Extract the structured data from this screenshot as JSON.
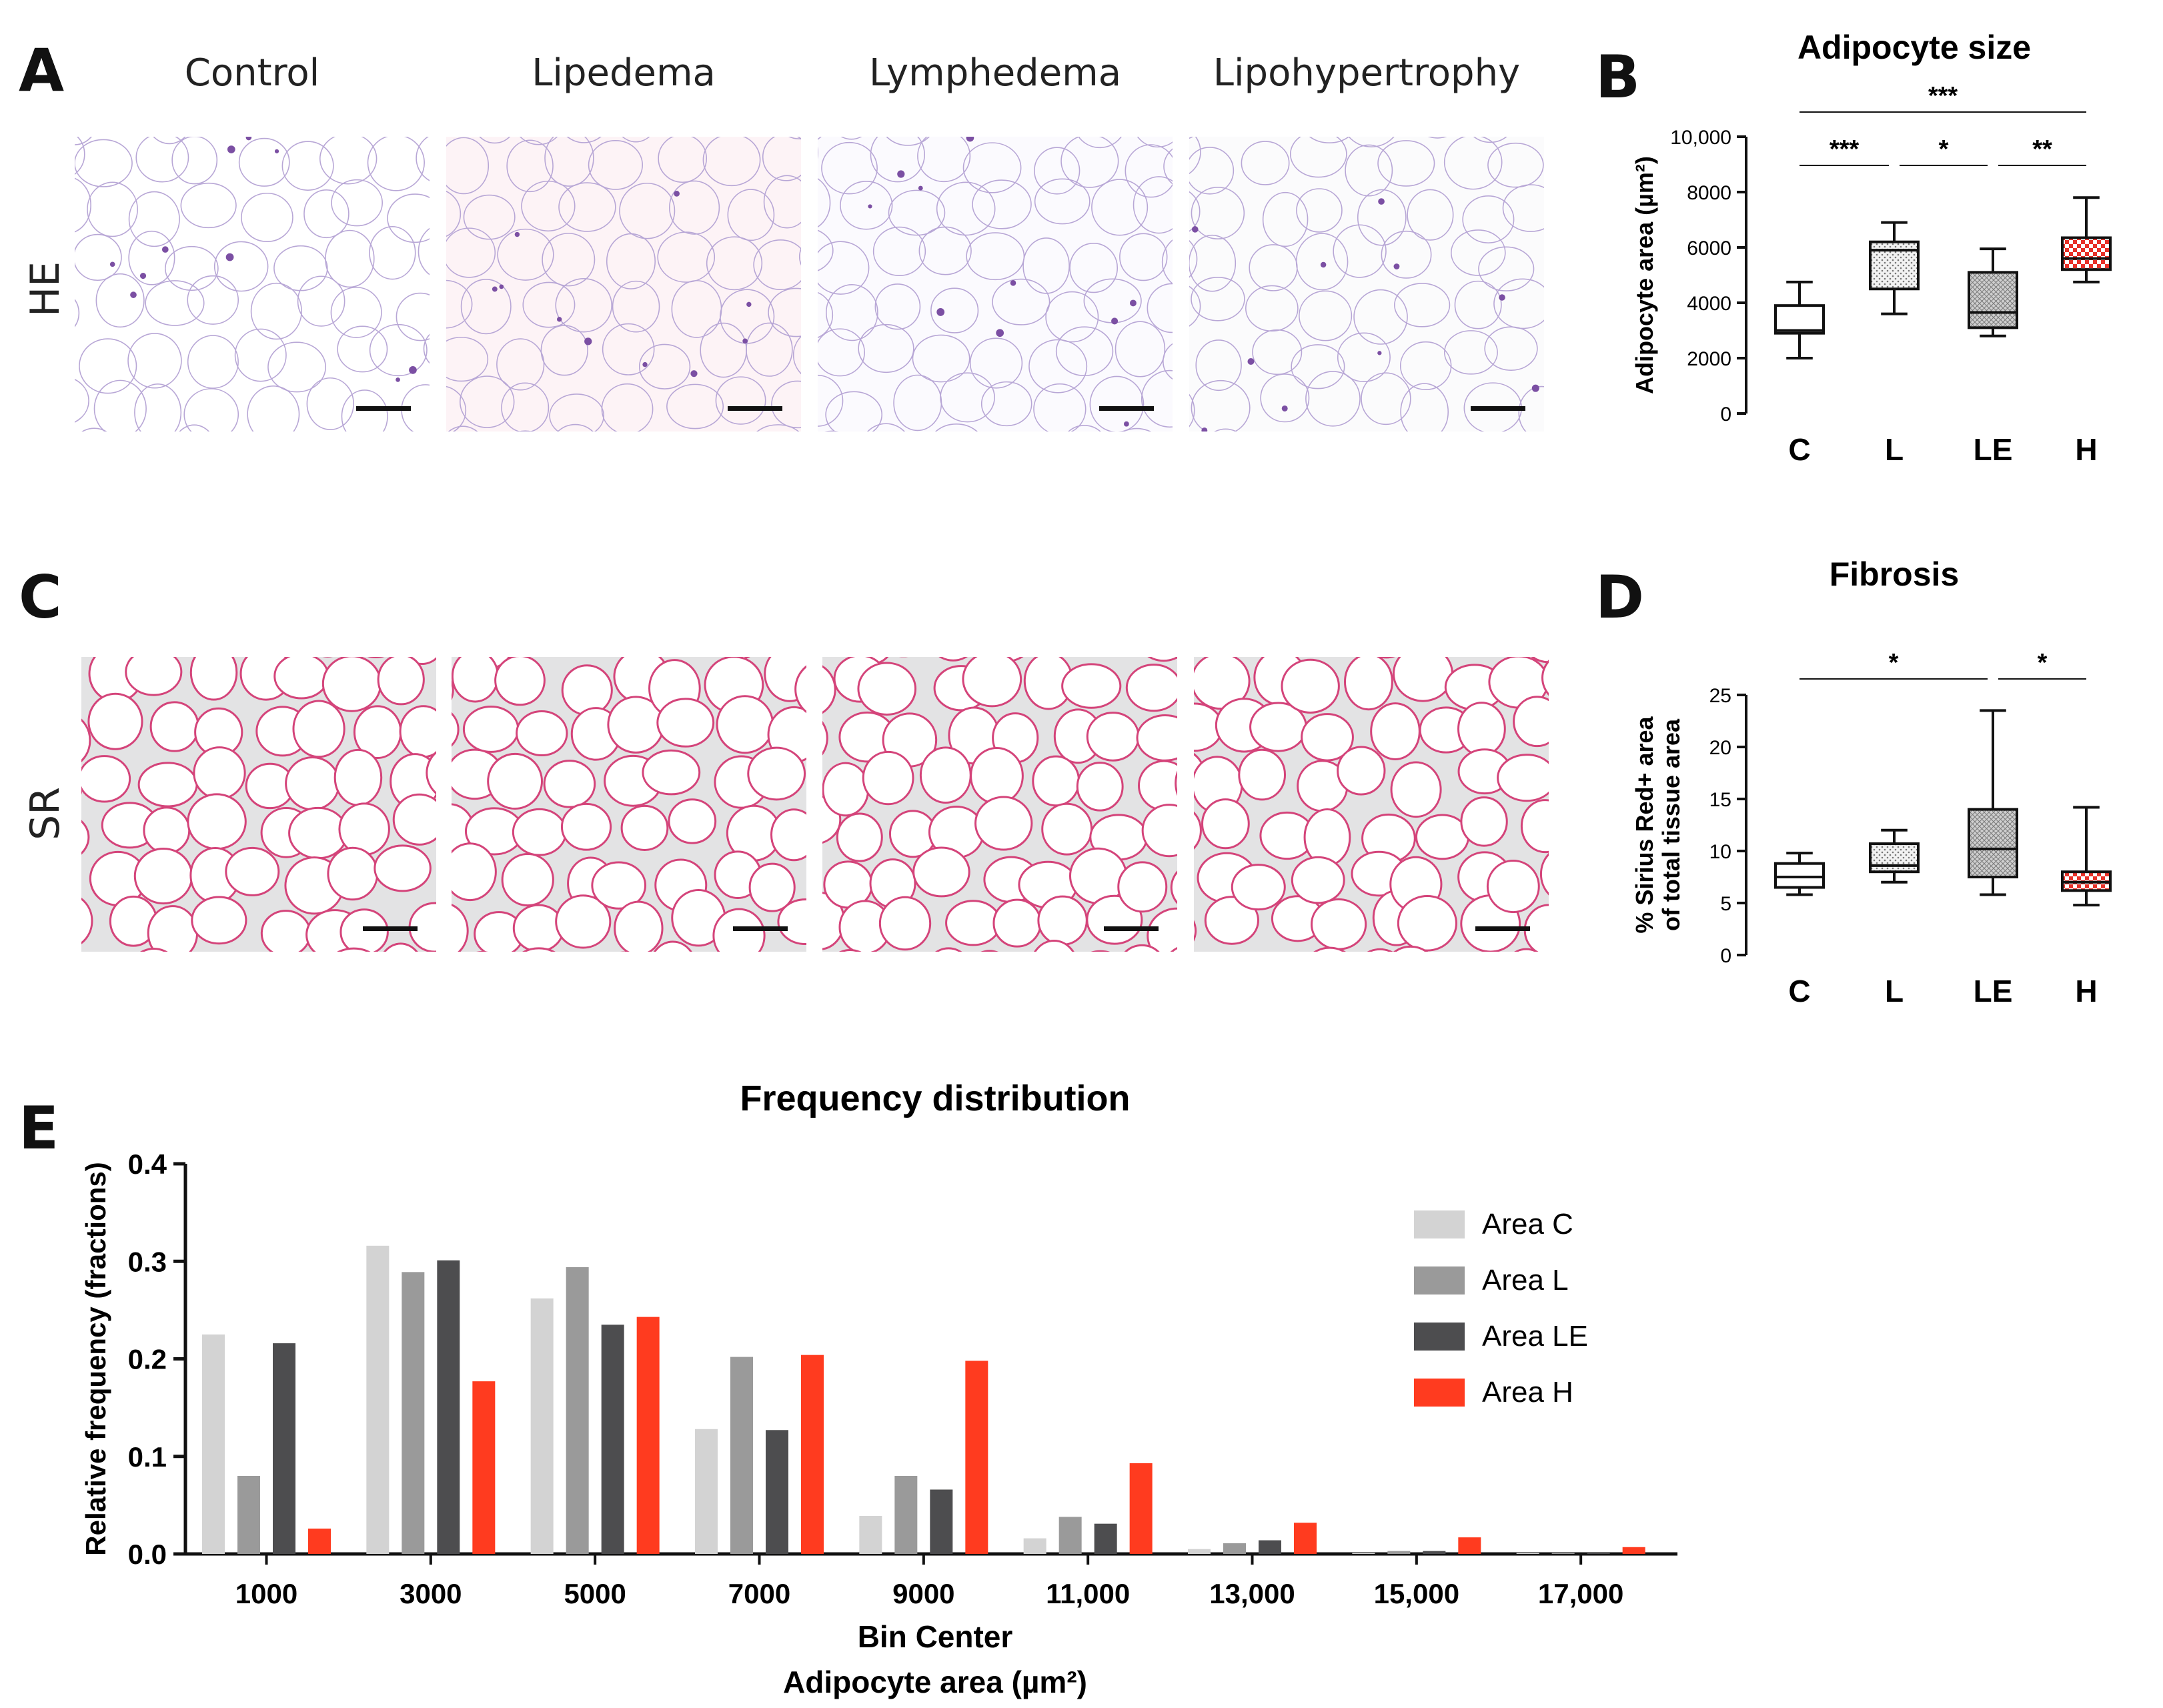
{
  "panels": {
    "A": {
      "letter": "A"
    },
    "B": {
      "letter": "B"
    },
    "C": {
      "letter": "C"
    },
    "D": {
      "letter": "D"
    },
    "E": {
      "letter": "E"
    }
  },
  "histology": {
    "columns": [
      "Control",
      "Lipedema",
      "Lymphedema",
      "Lipohypertrophy"
    ],
    "row_labels": [
      "HE",
      "SR"
    ],
    "colors": {
      "he_bg": [
        "#ffffff",
        "#fdf3f6",
        "#fbfafe",
        "#fbfbfc"
      ],
      "he_stroke": "#b8a7d6",
      "he_dark": "#7b4fa3",
      "sr_bg": "#e3e3e4",
      "sr_fill": "#ffffff",
      "sr_stroke": "#d4447a"
    }
  },
  "chart_data": [
    {
      "id": "B",
      "type": "box",
      "title": "Adipocyte size",
      "ylabel": "Adipocyte area (µm²)",
      "categories": [
        "C",
        "L",
        "LE",
        "H"
      ],
      "ylim": [
        0,
        10000
      ],
      "yticks": [
        "0",
        "2000",
        "4000",
        "6000",
        "8000",
        "10,000"
      ],
      "ytick_values": [
        0,
        2000,
        4000,
        6000,
        8000,
        10000
      ],
      "boxes": [
        {
          "min": 2000,
          "q1": 2900,
          "median": 3000,
          "q3": 3900,
          "max": 4750,
          "fill": "white"
        },
        {
          "min": 3600,
          "q1": 4500,
          "median": 5900,
          "q3": 6200,
          "max": 6900,
          "fill": "dots"
        },
        {
          "min": 2800,
          "q1": 3100,
          "median": 3650,
          "q3": 5100,
          "max": 5950,
          "fill": "grid"
        },
        {
          "min": 4750,
          "q1": 5200,
          "median": 5600,
          "q3": 6350,
          "max": 7800,
          "fill": "red"
        }
      ],
      "significance": [
        {
          "from": 0,
          "to": 3,
          "label": "***",
          "level": 2
        },
        {
          "from": 0,
          "to": 1,
          "label": "***",
          "level": 1
        },
        {
          "from": 1,
          "to": 2,
          "label": "*",
          "level": 1
        },
        {
          "from": 2,
          "to": 3,
          "label": "**",
          "level": 1
        }
      ]
    },
    {
      "id": "D",
      "type": "box",
      "title": "Fibrosis",
      "ylabel_lines": [
        "% Sirius Red+ area",
        "of total tissue area"
      ],
      "categories": [
        "C",
        "L",
        "LE",
        "H"
      ],
      "ylim": [
        0,
        25
      ],
      "yticks": [
        "0",
        "5",
        "10",
        "15",
        "20",
        "25"
      ],
      "ytick_values": [
        0,
        5,
        10,
        15,
        20,
        25
      ],
      "boxes": [
        {
          "min": 5.8,
          "q1": 6.5,
          "median": 7.5,
          "q3": 8.8,
          "max": 9.8,
          "fill": "white"
        },
        {
          "min": 7.0,
          "q1": 8.0,
          "median": 8.6,
          "q3": 10.7,
          "max": 12.0,
          "fill": "dots"
        },
        {
          "min": 5.8,
          "q1": 7.5,
          "median": 10.2,
          "q3": 14.0,
          "max": 23.5,
          "fill": "grid"
        },
        {
          "min": 4.8,
          "q1": 6.2,
          "median": 7.0,
          "q3": 8.0,
          "max": 14.2,
          "fill": "red"
        }
      ],
      "significance": [
        {
          "from": 0,
          "to": 2,
          "label": "*",
          "level": 1
        },
        {
          "from": 2,
          "to": 3,
          "label": "*",
          "level": 1
        }
      ]
    },
    {
      "id": "E",
      "type": "bar",
      "title": "Frequency distribution",
      "ylabel": "Relative frequency (fractions)",
      "xlabel_lines": [
        "Bin Center",
        "Adipocyte area (µm²)"
      ],
      "categories": [
        "1000",
        "3000",
        "5000",
        "7000",
        "9000",
        "11,000",
        "13,000",
        "15,000",
        "17,000"
      ],
      "ylim": [
        0,
        0.4
      ],
      "yticks": [
        "0.0",
        "0.1",
        "0.2",
        "0.3",
        "0.4"
      ],
      "ytick_values": [
        0,
        0.1,
        0.2,
        0.3,
        0.4
      ],
      "legend_position": "right",
      "series": [
        {
          "name": "Area C",
          "color": "#d3d3d3",
          "values": [
            0.225,
            0.316,
            0.262,
            0.128,
            0.039,
            0.016,
            0.005,
            0.001,
            0.001
          ]
        },
        {
          "name": "Area L",
          "color": "#9a9a9a",
          "values": [
            0.08,
            0.289,
            0.294,
            0.202,
            0.08,
            0.038,
            0.011,
            0.003,
            0.001
          ]
        },
        {
          "name": "Area LE",
          "color": "#4d4d4f",
          "values": [
            0.216,
            0.301,
            0.235,
            0.127,
            0.066,
            0.031,
            0.014,
            0.003,
            0.001
          ]
        },
        {
          "name": "Area H",
          "color": "#ff3b1f",
          "values": [
            0.026,
            0.177,
            0.243,
            0.204,
            0.198,
            0.093,
            0.032,
            0.017,
            0.007
          ]
        }
      ]
    }
  ]
}
